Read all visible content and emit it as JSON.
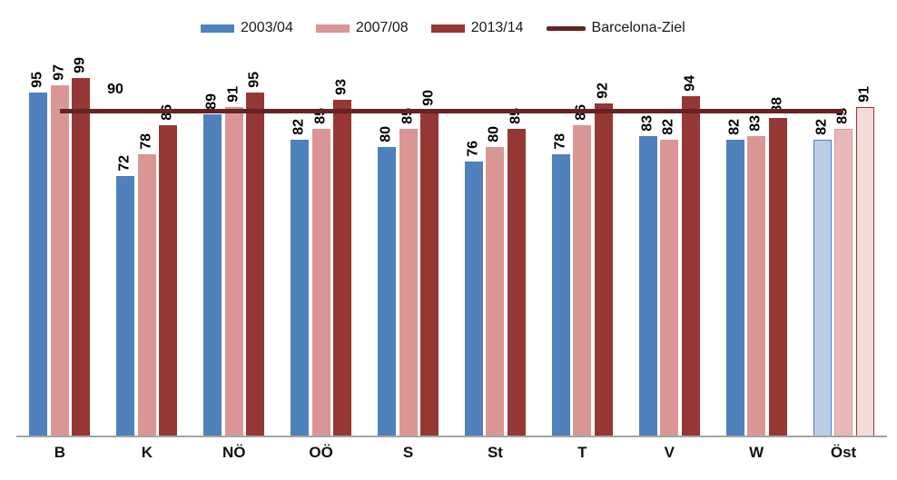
{
  "chart_data": {
    "type": "bar",
    "title": "",
    "categories": [
      "B",
      "K",
      "NÖ",
      "OÖ",
      "S",
      "St",
      "T",
      "V",
      "W",
      "Öst"
    ],
    "series": [
      {
        "name": "2003/04",
        "color": "#4F81BD",
        "highlight_fill": "#B9CDE5",
        "values": [
          95,
          72,
          89,
          82,
          80,
          76,
          78,
          83,
          82,
          82
        ]
      },
      {
        "name": "2007/08",
        "color": "#D99694",
        "highlight_fill": "#E6B9B8",
        "values": [
          97,
          78,
          91,
          85,
          85,
          80,
          86,
          82,
          83,
          85
        ]
      },
      {
        "name": "2013/14",
        "color": "#953735",
        "highlight_fill": "#F2DCDB",
        "values": [
          99,
          86,
          95,
          93,
          90,
          85,
          92,
          94,
          88,
          91
        ]
      }
    ],
    "target_line": {
      "name": "Barcelona-Ziel",
      "value": 90,
      "label": "90",
      "color": "#632423"
    },
    "highlight_category": "Öst",
    "value_labels_rotated": true,
    "ylim": [
      0,
      100
    ],
    "grid": false,
    "legend_position": "top",
    "x_axis_color": "#a3a3a3"
  }
}
